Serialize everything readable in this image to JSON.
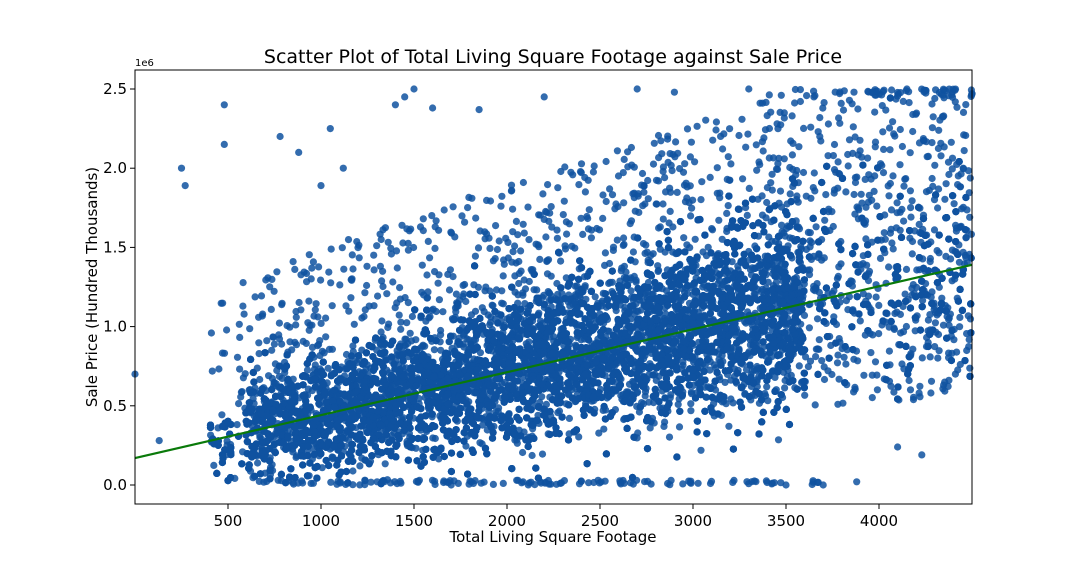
{
  "chart_data": {
    "type": "scatter",
    "title": "Scatter Plot of Total Living Square Footage against Sale Price",
    "xlabel": "Total Living Square Footage",
    "ylabel": "Sale Price (Hundred Thousands)",
    "y_offset_label": "1e6",
    "xlim": [
      0,
      4500
    ],
    "ylim": [
      -0.12,
      2.62
    ],
    "x_ticks": [
      500,
      1000,
      1500,
      2000,
      2500,
      3000,
      3500,
      4000
    ],
    "x_tick_labels": [
      "500",
      "1000",
      "1500",
      "2000",
      "2500",
      "3000",
      "3500",
      "4000"
    ],
    "y_ticks": [
      0.0,
      0.5,
      1.0,
      1.5,
      2.0,
      2.5
    ],
    "y_tick_labels": [
      "0.0",
      "0.5",
      "1.0",
      "1.5",
      "2.0",
      "2.5"
    ],
    "grid": false,
    "legend": "none",
    "series": [
      {
        "color": "#0f52a0",
        "points_note_sample": [
          [
            480,
            2.4
          ],
          [
            480,
            2.15
          ],
          [
            250,
            2.0
          ],
          [
            270,
            1.89
          ],
          [
            780,
            2.2
          ],
          [
            880,
            2.1
          ],
          [
            1120,
            2.0
          ],
          [
            1050,
            2.25
          ],
          [
            1000,
            1.89
          ],
          [
            1400,
            2.4
          ],
          [
            1500,
            2.5
          ],
          [
            1450,
            2.45
          ],
          [
            1600,
            2.38
          ],
          [
            1850,
            2.37
          ],
          [
            2200,
            2.45
          ],
          [
            2700,
            2.5
          ],
          [
            2900,
            2.48
          ],
          [
            3300,
            2.5
          ],
          [
            3650,
            2.45
          ],
          [
            4150,
            2.5
          ],
          [
            4300,
            2.44
          ],
          [
            4500,
            2.47
          ],
          [
            0,
            0.7
          ],
          [
            130,
            0.28
          ],
          [
            1700,
            0.0
          ],
          [
            3500,
            0.0
          ],
          [
            3700,
            0.0
          ],
          [
            3880,
            0.02
          ],
          [
            4230,
            0.19
          ],
          [
            4100,
            0.24
          ]
        ]
      }
    ],
    "trendline": {
      "color": "#0a7a0a",
      "x": [
        0,
        4500
      ],
      "y": [
        0.17,
        1.39
      ]
    }
  }
}
